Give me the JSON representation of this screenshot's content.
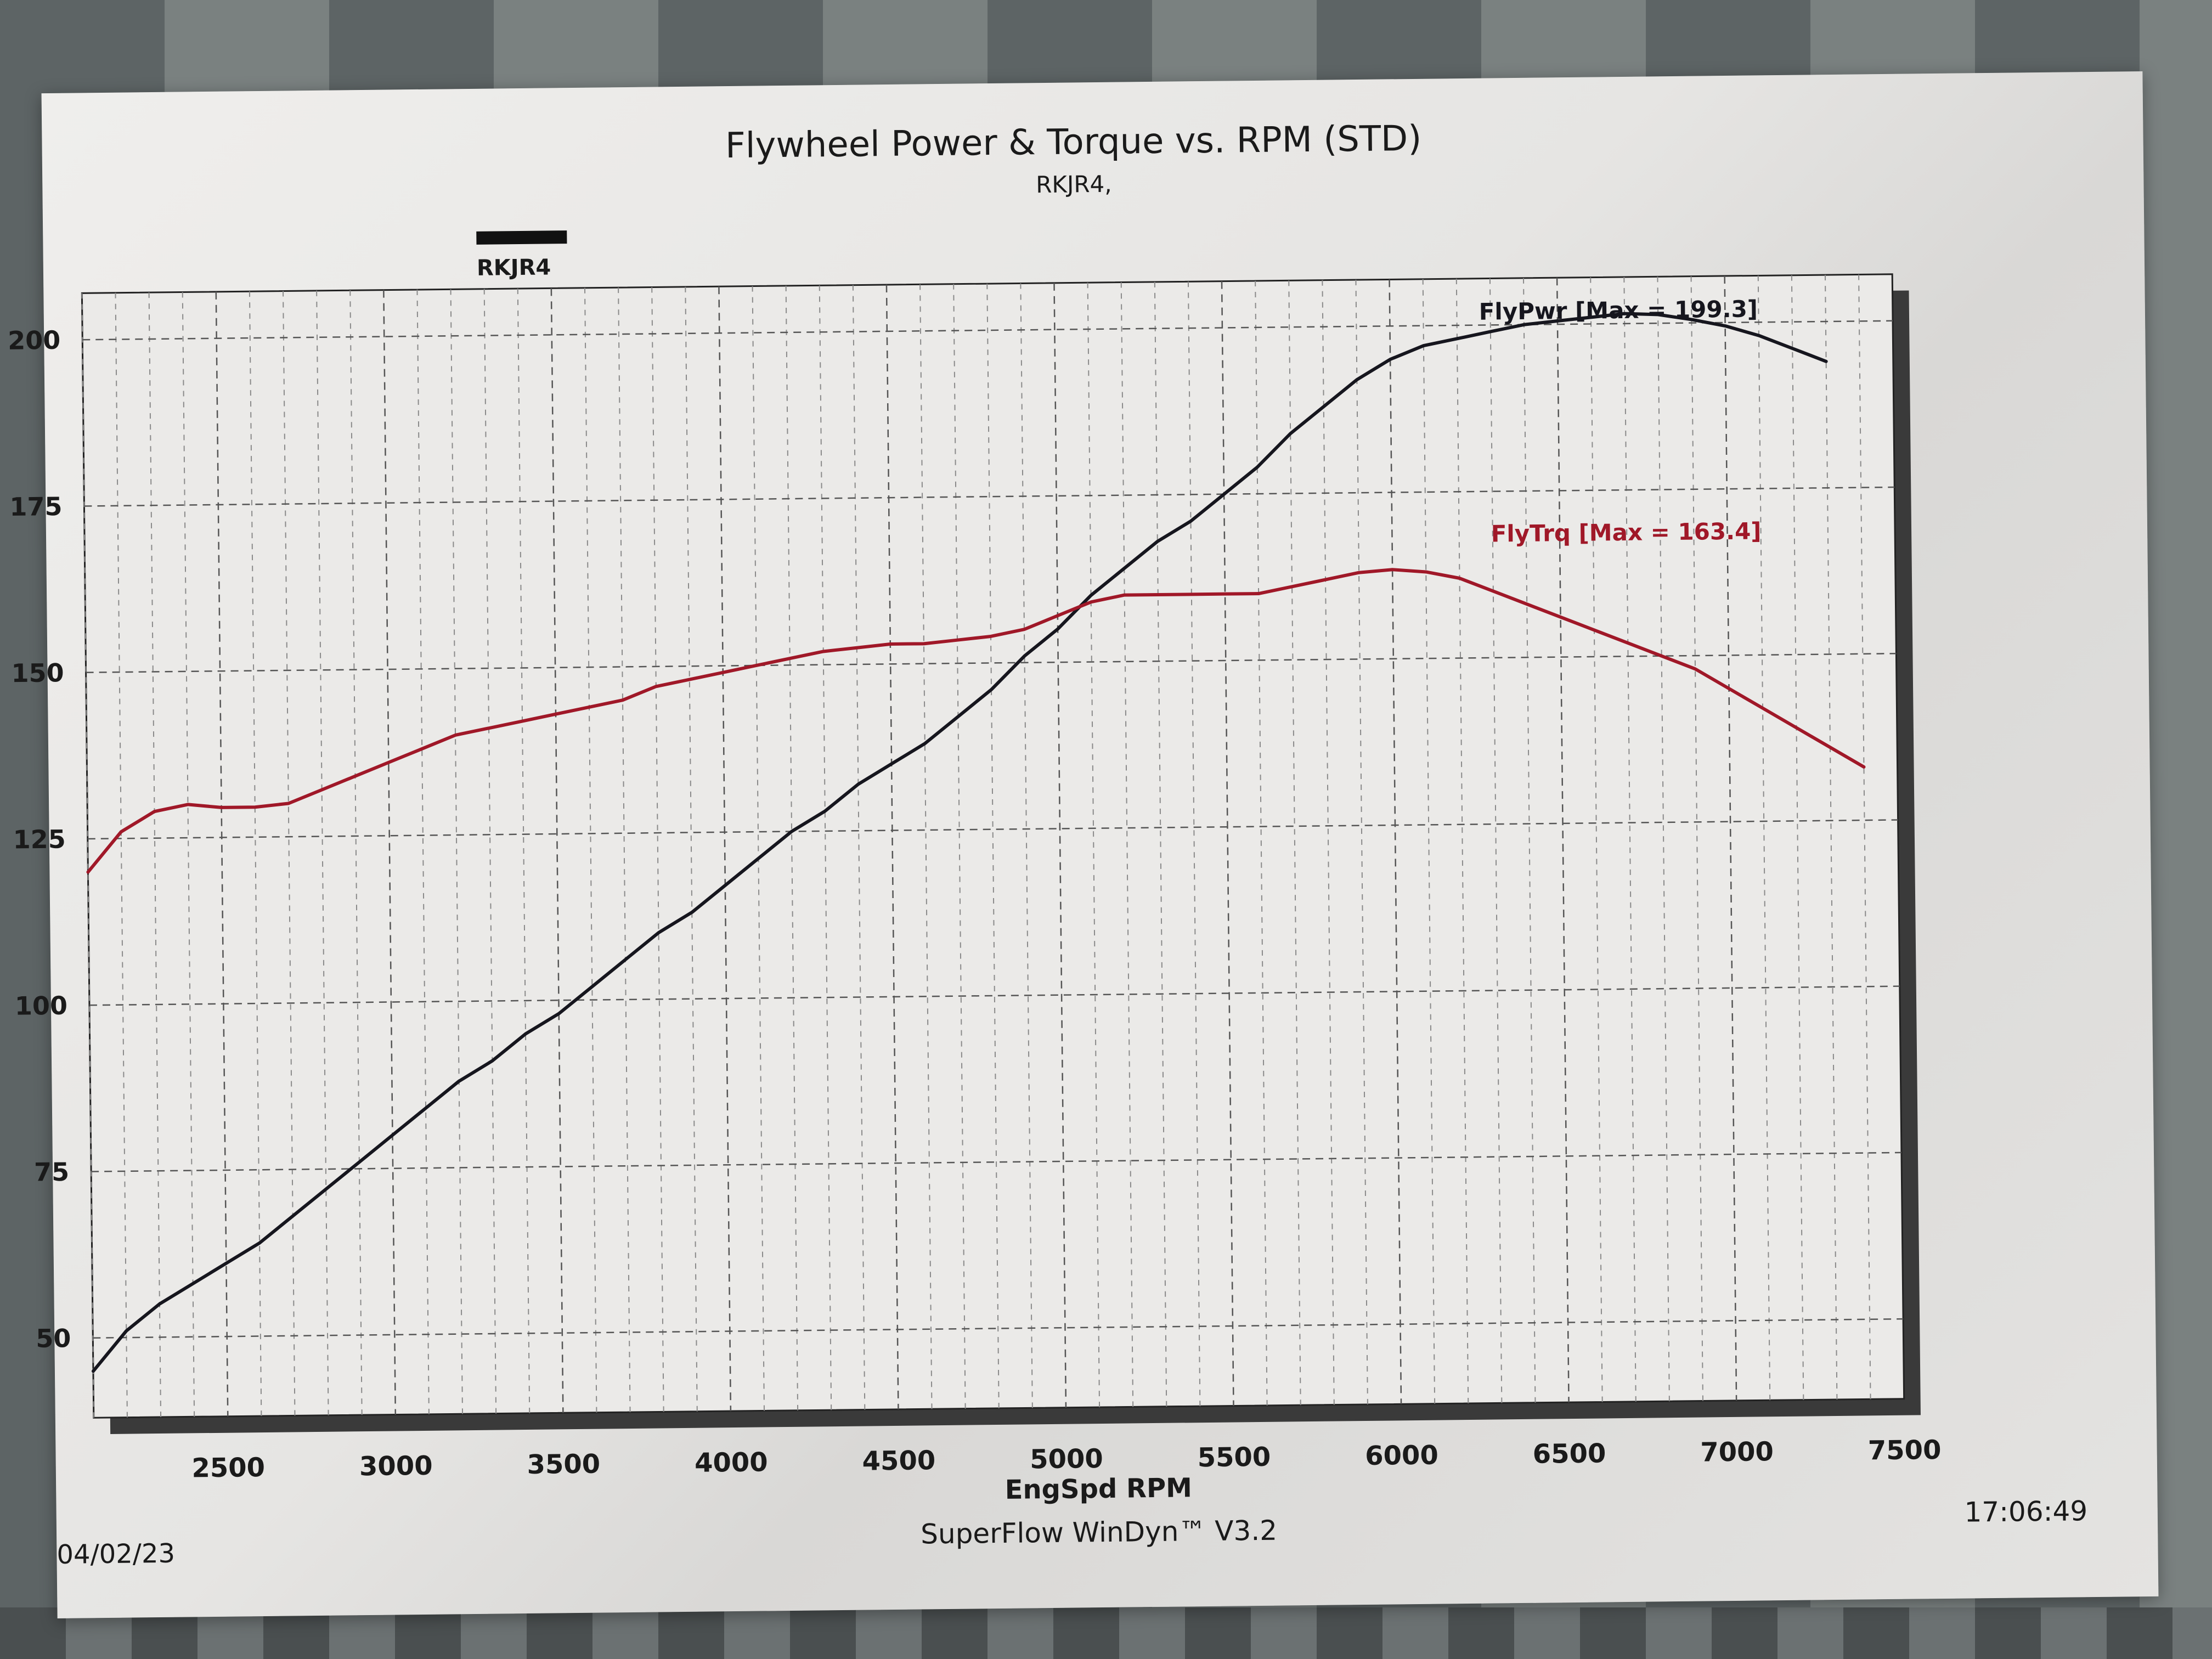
{
  "header": {
    "title": "Flywheel Power & Torque vs. RPM (STD)",
    "subtitle": "RKJR4,"
  },
  "legend": {
    "label": "RKJR4",
    "color": "#111111"
  },
  "footer": {
    "date": "04/02/23",
    "software": "SuperFlow WinDyn™ V3.2",
    "time": "17:06:49"
  },
  "colors": {
    "power": "#16161e",
    "torque": "#a01828",
    "grid": "#8a8a8a"
  },
  "chart_data": {
    "type": "line",
    "xlabel": "EngSpd RPM",
    "ylabel": "",
    "xlim": [
      2100,
      7500
    ],
    "ylim": [
      38,
      207
    ],
    "x_ticks": [
      2500,
      3000,
      3500,
      4000,
      4500,
      5000,
      5500,
      6000,
      6500,
      7000,
      7500
    ],
    "y_ticks": [
      50,
      75,
      100,
      125,
      150,
      175,
      200
    ],
    "grid": true,
    "series": [
      {
        "name": "FlyPwr",
        "annotation": "FlyPwr [Max = 199.3]",
        "color": "#16161e",
        "points": [
          [
            2100,
            45
          ],
          [
            2200,
            51
          ],
          [
            2300,
            55
          ],
          [
            2400,
            58
          ],
          [
            2500,
            61
          ],
          [
            2600,
            64
          ],
          [
            2700,
            68
          ],
          [
            2800,
            72
          ],
          [
            2900,
            76
          ],
          [
            3000,
            80
          ],
          [
            3100,
            84
          ],
          [
            3200,
            88
          ],
          [
            3300,
            91
          ],
          [
            3400,
            95
          ],
          [
            3500,
            98
          ],
          [
            3600,
            102
          ],
          [
            3700,
            106
          ],
          [
            3800,
            110
          ],
          [
            3900,
            113
          ],
          [
            4000,
            117
          ],
          [
            4100,
            121
          ],
          [
            4200,
            125
          ],
          [
            4300,
            128
          ],
          [
            4400,
            132
          ],
          [
            4500,
            135
          ],
          [
            4600,
            138
          ],
          [
            4700,
            142
          ],
          [
            4800,
            146
          ],
          [
            4900,
            151
          ],
          [
            5000,
            155
          ],
          [
            5100,
            160
          ],
          [
            5200,
            164
          ],
          [
            5300,
            168
          ],
          [
            5400,
            171
          ],
          [
            5500,
            175
          ],
          [
            5600,
            179
          ],
          [
            5700,
            184
          ],
          [
            5800,
            188
          ],
          [
            5900,
            192
          ],
          [
            6000,
            195
          ],
          [
            6100,
            197
          ],
          [
            6200,
            198
          ],
          [
            6300,
            199
          ],
          [
            6400,
            200
          ],
          [
            6500,
            200.5
          ],
          [
            6600,
            201
          ],
          [
            6700,
            201.5
          ],
          [
            6800,
            201.3
          ],
          [
            6900,
            200.5
          ],
          [
            7000,
            199.5
          ],
          [
            7100,
            198
          ],
          [
            7200,
            196
          ],
          [
            7300,
            194
          ]
        ]
      },
      {
        "name": "FlyTrq",
        "annotation": "FlyTrq [Max = 163.4]",
        "color": "#a01828",
        "points": [
          [
            2100,
            120
          ],
          [
            2200,
            126
          ],
          [
            2300,
            129
          ],
          [
            2400,
            130
          ],
          [
            2500,
            129.5
          ],
          [
            2600,
            129.5
          ],
          [
            2700,
            130
          ],
          [
            2800,
            132
          ],
          [
            2900,
            134
          ],
          [
            3000,
            136
          ],
          [
            3100,
            138
          ],
          [
            3200,
            140
          ],
          [
            3300,
            141
          ],
          [
            3400,
            142
          ],
          [
            3500,
            143
          ],
          [
            3600,
            144
          ],
          [
            3700,
            145
          ],
          [
            3800,
            147
          ],
          [
            3900,
            148
          ],
          [
            4000,
            149
          ],
          [
            4100,
            150
          ],
          [
            4200,
            151
          ],
          [
            4300,
            152
          ],
          [
            4400,
            152.5
          ],
          [
            4500,
            153
          ],
          [
            4600,
            153
          ],
          [
            4700,
            153.5
          ],
          [
            4800,
            154
          ],
          [
            4900,
            155
          ],
          [
            5000,
            157
          ],
          [
            5100,
            159
          ],
          [
            5200,
            160
          ],
          [
            5300,
            160
          ],
          [
            5400,
            160
          ],
          [
            5500,
            160
          ],
          [
            5600,
            160
          ],
          [
            5700,
            161
          ],
          [
            5800,
            162
          ],
          [
            5900,
            163
          ],
          [
            6000,
            163.4
          ],
          [
            6100,
            163
          ],
          [
            6200,
            162
          ],
          [
            6300,
            160
          ],
          [
            6400,
            158
          ],
          [
            6500,
            156
          ],
          [
            6600,
            154
          ],
          [
            6700,
            152
          ],
          [
            6800,
            150
          ],
          [
            6900,
            148
          ],
          [
            7000,
            145
          ],
          [
            7100,
            142
          ],
          [
            7200,
            139
          ],
          [
            7300,
            136
          ],
          [
            7400,
            133
          ]
        ]
      }
    ]
  }
}
